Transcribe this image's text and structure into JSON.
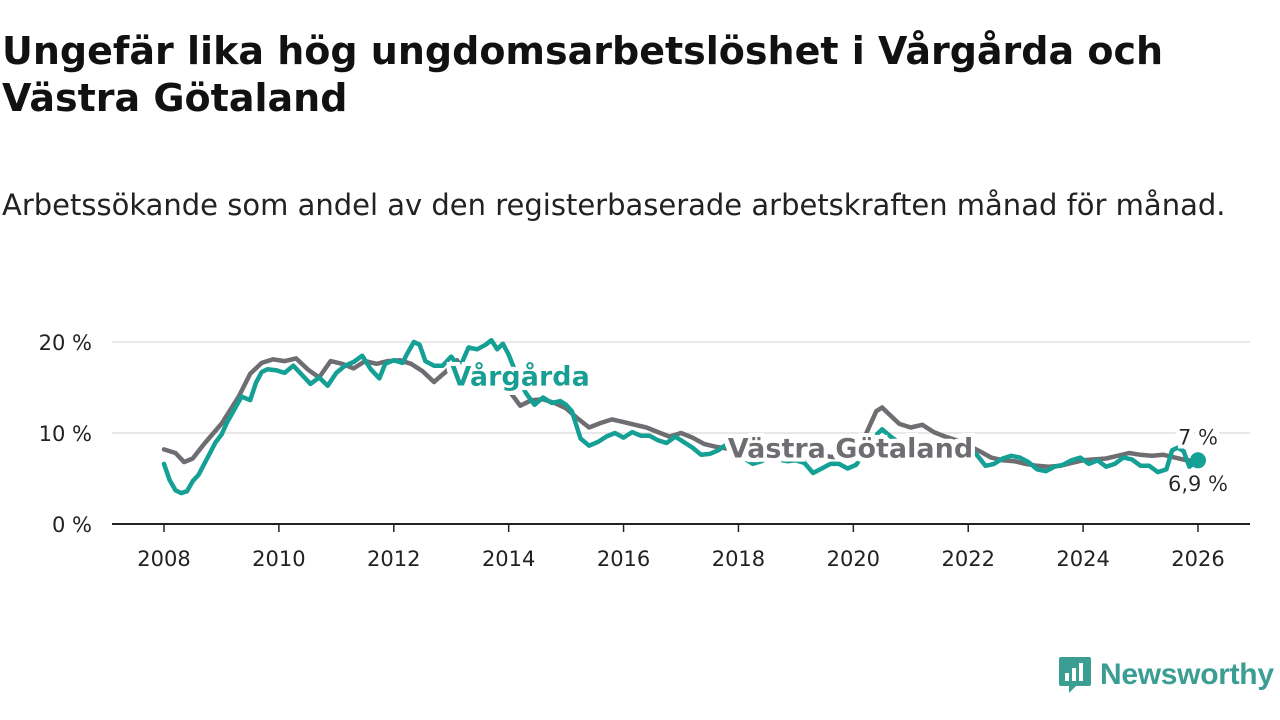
{
  "header": {
    "title": "Ungefär lika hög ungdomsarbetslöshet i Vårgårda och Västra Götaland",
    "subtitle": "Arbetssökande som andel av den registerbaserade arbetskraften månad för månad."
  },
  "brand": {
    "name": "Newsworthy",
    "icon": "newsworthy-logo-icon",
    "color": "#3a9e93"
  },
  "chart_data": {
    "type": "line",
    "title": "Ungefär lika hög ungdomsarbetslöshet i Vårgårda och Västra Götaland",
    "subtitle": "Arbetssökande som andel av den registerbaserade arbetskraften månad för månad.",
    "xlabel": "",
    "ylabel": "",
    "xlim": [
      2007.9,
      2027.1
    ],
    "ylim": [
      0,
      20
    ],
    "grid": true,
    "x_ticks": [
      2008,
      2010,
      2012,
      2014,
      2016,
      2018,
      2020,
      2022,
      2024,
      2026
    ],
    "x_tick_labels": [
      "2008",
      "2010",
      "2012",
      "2014",
      "2016",
      "2018",
      "2020",
      "2022",
      "2024",
      "2026"
    ],
    "y_ticks": [
      0,
      10,
      20
    ],
    "y_tick_labels": [
      "0 %",
      "10 %",
      "20 %"
    ],
    "series": [
      {
        "name": "Västra Götaland",
        "color": "#6e6e72",
        "end_label": "6,9 %",
        "points": [
          [
            2008.0,
            8.2
          ],
          [
            2008.2,
            7.8
          ],
          [
            2008.35,
            6.8
          ],
          [
            2008.5,
            7.2
          ],
          [
            2008.7,
            8.8
          ],
          [
            2009.0,
            11.0
          ],
          [
            2009.3,
            14.0
          ],
          [
            2009.5,
            16.5
          ],
          [
            2009.7,
            17.7
          ],
          [
            2009.9,
            18.1
          ],
          [
            2010.1,
            17.9
          ],
          [
            2010.3,
            18.2
          ],
          [
            2010.5,
            17.0
          ],
          [
            2010.7,
            16.1
          ],
          [
            2010.9,
            17.9
          ],
          [
            2011.1,
            17.6
          ],
          [
            2011.3,
            17.1
          ],
          [
            2011.5,
            17.9
          ],
          [
            2011.7,
            17.6
          ],
          [
            2011.9,
            17.9
          ],
          [
            2012.1,
            18.0
          ],
          [
            2012.3,
            17.6
          ],
          [
            2012.5,
            16.8
          ],
          [
            2012.7,
            15.6
          ],
          [
            2012.9,
            16.7
          ],
          [
            2013.1,
            18.0
          ],
          [
            2013.25,
            16.2
          ],
          [
            2013.4,
            15.0
          ],
          [
            2013.6,
            15.2
          ],
          [
            2013.8,
            15.7
          ],
          [
            2014.0,
            14.7
          ],
          [
            2014.2,
            13.0
          ],
          [
            2014.4,
            13.6
          ],
          [
            2014.6,
            13.7
          ],
          [
            2014.8,
            13.3
          ],
          [
            2015.0,
            12.7
          ],
          [
            2015.2,
            11.6
          ],
          [
            2015.4,
            10.6
          ],
          [
            2015.6,
            11.1
          ],
          [
            2015.8,
            11.5
          ],
          [
            2016.0,
            11.2
          ],
          [
            2016.2,
            10.9
          ],
          [
            2016.4,
            10.6
          ],
          [
            2016.6,
            10.1
          ],
          [
            2016.8,
            9.6
          ],
          [
            2017.0,
            10.0
          ],
          [
            2017.2,
            9.5
          ],
          [
            2017.4,
            8.8
          ],
          [
            2017.6,
            8.5
          ],
          [
            2017.8,
            8.3
          ],
          [
            2018.0,
            8.2
          ],
          [
            2018.3,
            7.8
          ],
          [
            2018.6,
            7.6
          ],
          [
            2018.9,
            7.5
          ],
          [
            2019.2,
            7.2
          ],
          [
            2019.4,
            7.6
          ],
          [
            2019.6,
            7.4
          ],
          [
            2019.8,
            7.3
          ],
          [
            2020.0,
            7.8
          ],
          [
            2020.2,
            9.6
          ],
          [
            2020.4,
            12.4
          ],
          [
            2020.5,
            12.8
          ],
          [
            2020.6,
            12.2
          ],
          [
            2020.8,
            11.0
          ],
          [
            2021.0,
            10.6
          ],
          [
            2021.2,
            10.9
          ],
          [
            2021.4,
            10.1
          ],
          [
            2021.6,
            9.6
          ],
          [
            2021.8,
            9.2
          ],
          [
            2022.0,
            8.6
          ],
          [
            2022.2,
            8.0
          ],
          [
            2022.4,
            7.3
          ],
          [
            2022.6,
            7.0
          ],
          [
            2022.8,
            6.9
          ],
          [
            2023.0,
            6.6
          ],
          [
            2023.2,
            6.4
          ],
          [
            2023.4,
            6.3
          ],
          [
            2023.6,
            6.4
          ],
          [
            2023.8,
            6.7
          ],
          [
            2024.0,
            7.0
          ],
          [
            2024.2,
            7.1
          ],
          [
            2024.4,
            7.2
          ],
          [
            2024.6,
            7.5
          ],
          [
            2024.8,
            7.8
          ],
          [
            2025.0,
            7.6
          ],
          [
            2025.2,
            7.5
          ],
          [
            2025.4,
            7.6
          ],
          [
            2025.6,
            7.3
          ],
          [
            2025.8,
            7.0
          ],
          [
            2026.0,
            6.9
          ]
        ]
      },
      {
        "name": "Vårgårda",
        "color": "#14a095",
        "end_label": "7 %",
        "points": [
          [
            2008.0,
            6.6
          ],
          [
            2008.1,
            4.8
          ],
          [
            2008.2,
            3.7
          ],
          [
            2008.3,
            3.4
          ],
          [
            2008.4,
            3.6
          ],
          [
            2008.5,
            4.7
          ],
          [
            2008.6,
            5.4
          ],
          [
            2008.75,
            7.2
          ],
          [
            2008.9,
            9.0
          ],
          [
            2009.0,
            9.8
          ],
          [
            2009.1,
            11.2
          ],
          [
            2009.2,
            12.3
          ],
          [
            2009.35,
            14.0
          ],
          [
            2009.5,
            13.6
          ],
          [
            2009.6,
            15.5
          ],
          [
            2009.7,
            16.7
          ],
          [
            2009.8,
            17.0
          ],
          [
            2009.95,
            16.9
          ],
          [
            2010.1,
            16.6
          ],
          [
            2010.25,
            17.4
          ],
          [
            2010.4,
            16.4
          ],
          [
            2010.55,
            15.4
          ],
          [
            2010.7,
            16.1
          ],
          [
            2010.85,
            15.2
          ],
          [
            2011.0,
            16.6
          ],
          [
            2011.15,
            17.4
          ],
          [
            2011.3,
            17.8
          ],
          [
            2011.45,
            18.5
          ],
          [
            2011.6,
            17.0
          ],
          [
            2011.75,
            16.0
          ],
          [
            2011.85,
            17.6
          ],
          [
            2012.0,
            18.0
          ],
          [
            2012.15,
            17.7
          ],
          [
            2012.25,
            18.9
          ],
          [
            2012.35,
            20.0
          ],
          [
            2012.45,
            19.7
          ],
          [
            2012.55,
            17.9
          ],
          [
            2012.7,
            17.4
          ],
          [
            2012.85,
            17.4
          ],
          [
            2013.0,
            18.4
          ],
          [
            2013.15,
            17.2
          ],
          [
            2013.3,
            19.4
          ],
          [
            2013.45,
            19.2
          ],
          [
            2013.6,
            19.7
          ],
          [
            2013.7,
            20.2
          ],
          [
            2013.8,
            19.2
          ],
          [
            2013.9,
            19.8
          ],
          [
            2014.0,
            18.6
          ],
          [
            2014.15,
            16.2
          ],
          [
            2014.3,
            14.4
          ],
          [
            2014.45,
            13.1
          ],
          [
            2014.6,
            13.9
          ],
          [
            2014.75,
            13.3
          ],
          [
            2014.9,
            13.5
          ],
          [
            2015.0,
            13.1
          ],
          [
            2015.1,
            12.4
          ],
          [
            2015.25,
            9.4
          ],
          [
            2015.4,
            8.6
          ],
          [
            2015.55,
            9.0
          ],
          [
            2015.7,
            9.6
          ],
          [
            2015.85,
            10.0
          ],
          [
            2016.0,
            9.5
          ],
          [
            2016.15,
            10.1
          ],
          [
            2016.3,
            9.7
          ],
          [
            2016.45,
            9.7
          ],
          [
            2016.6,
            9.2
          ],
          [
            2016.75,
            8.9
          ],
          [
            2016.9,
            9.6
          ],
          [
            2017.05,
            9.0
          ],
          [
            2017.2,
            8.4
          ],
          [
            2017.35,
            7.6
          ],
          [
            2017.5,
            7.7
          ],
          [
            2017.65,
            8.1
          ],
          [
            2017.8,
            8.8
          ],
          [
            2017.95,
            8.3
          ],
          [
            2018.1,
            7.2
          ],
          [
            2018.25,
            6.6
          ],
          [
            2018.4,
            6.9
          ],
          [
            2018.55,
            7.4
          ],
          [
            2018.7,
            7.1
          ],
          [
            2018.85,
            6.9
          ],
          [
            2019.0,
            7.0
          ],
          [
            2019.15,
            6.7
          ],
          [
            2019.3,
            5.6
          ],
          [
            2019.45,
            6.1
          ],
          [
            2019.6,
            6.6
          ],
          [
            2019.75,
            6.6
          ],
          [
            2019.9,
            6.1
          ],
          [
            2020.05,
            6.5
          ],
          [
            2020.2,
            8.0
          ],
          [
            2020.35,
            9.5
          ],
          [
            2020.5,
            10.4
          ],
          [
            2020.65,
            9.6
          ],
          [
            2020.8,
            8.9
          ],
          [
            2020.95,
            8.1
          ],
          [
            2021.1,
            7.6
          ],
          [
            2021.25,
            7.3
          ],
          [
            2021.4,
            7.9
          ],
          [
            2021.55,
            8.3
          ],
          [
            2021.7,
            8.0
          ],
          [
            2021.85,
            7.9
          ],
          [
            2022.0,
            8.3
          ],
          [
            2022.15,
            7.6
          ],
          [
            2022.3,
            6.4
          ],
          [
            2022.45,
            6.6
          ],
          [
            2022.6,
            7.2
          ],
          [
            2022.75,
            7.5
          ],
          [
            2022.9,
            7.3
          ],
          [
            2023.05,
            6.8
          ],
          [
            2023.2,
            6.0
          ],
          [
            2023.35,
            5.8
          ],
          [
            2023.5,
            6.3
          ],
          [
            2023.65,
            6.5
          ],
          [
            2023.8,
            7.0
          ],
          [
            2023.95,
            7.3
          ],
          [
            2024.1,
            6.6
          ],
          [
            2024.25,
            7.0
          ],
          [
            2024.4,
            6.3
          ],
          [
            2024.55,
            6.6
          ],
          [
            2024.7,
            7.3
          ],
          [
            2024.85,
            7.1
          ],
          [
            2025.0,
            6.4
          ],
          [
            2025.15,
            6.4
          ],
          [
            2025.3,
            5.7
          ],
          [
            2025.45,
            6.0
          ],
          [
            2025.55,
            8.1
          ],
          [
            2025.65,
            8.4
          ],
          [
            2025.75,
            8.0
          ],
          [
            2025.85,
            6.3
          ],
          [
            2026.0,
            7.0
          ]
        ]
      }
    ],
    "annotations": [
      {
        "text": "Vårgårda",
        "series": "Vårgårda",
        "x": 2014.2,
        "y": 16.2
      },
      {
        "text": "Västra Götaland",
        "series": "Västra Götaland",
        "x": 2019.95,
        "y": 8.3
      }
    ]
  }
}
